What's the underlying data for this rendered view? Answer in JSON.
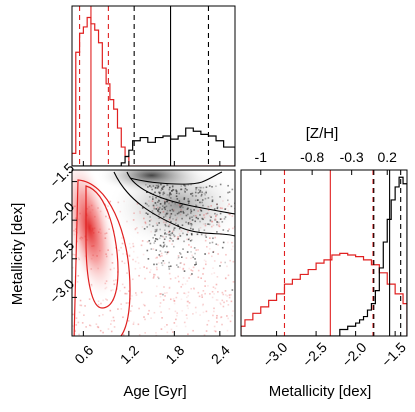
{
  "chart_data": [
    {
      "id": "age_hist",
      "type": "histogram",
      "xlim": [
        0.45,
        2.6
      ],
      "series": [
        {
          "color": "#e02020",
          "bins_x": [
            0.45,
            0.5,
            0.55,
            0.6,
            0.65,
            0.7,
            0.75,
            0.8,
            0.85,
            0.9,
            0.95,
            1.0,
            1.05,
            1.1,
            1.15,
            1.2,
            2.6
          ],
          "values": [
            0.08,
            0.72,
            0.84,
            0.88,
            0.94,
            0.9,
            0.86,
            0.78,
            0.62,
            0.52,
            0.42,
            0.36,
            0.24,
            0.12,
            0.06,
            0.0
          ],
          "lines": [
            {
              "x": 0.55,
              "style": "dashed"
            },
            {
              "x": 0.7,
              "style": "solid"
            },
            {
              "x": 0.93,
              "style": "dashed"
            }
          ]
        },
        {
          "color": "#000000",
          "bins_x": [
            0.45,
            1.1,
            1.15,
            1.2,
            1.25,
            1.35,
            1.45,
            1.55,
            1.65,
            1.75,
            1.85,
            1.95,
            2.05,
            2.15,
            2.25,
            2.35,
            2.45,
            2.6
          ],
          "values": [
            0.0,
            0.02,
            0.06,
            0.1,
            0.16,
            0.18,
            0.15,
            0.18,
            0.19,
            0.17,
            0.19,
            0.24,
            0.22,
            0.2,
            0.19,
            0.16,
            0.12
          ],
          "lines": [
            {
              "x": 1.27,
              "style": "dashed"
            },
            {
              "x": 1.75,
              "style": "solid"
            },
            {
              "x": 2.25,
              "style": "dashed"
            }
          ]
        }
      ]
    },
    {
      "id": "age_metallicity_2d",
      "type": "scatter-density",
      "xlabel": "Age [Gyr]",
      "ylabel": "Metallicity [dex]",
      "xlim": [
        0.45,
        2.6
      ],
      "ylim": [
        -3.5,
        -1.35
      ],
      "xticks": [
        0.6,
        1.2,
        1.8,
        2.4
      ],
      "xtick_labels": [
        "0.6",
        "1.2",
        "1.8",
        "2.4"
      ],
      "yticks": [
        -1.5,
        -2.0,
        -2.5,
        -3.0
      ],
      "ytick_labels": [
        "−1.5",
        "−2.0",
        "−2.5",
        "−3.0"
      ],
      "populations": [
        {
          "color": "#e02020",
          "center_x": 0.68,
          "center_y": -2.1
        },
        {
          "color": "#000000",
          "center_x": 1.5,
          "center_y": -1.42
        }
      ]
    },
    {
      "id": "metallicity_hist",
      "type": "histogram",
      "xlabel": "Metallicity [dex]",
      "top_axis_label": "[Z/H]",
      "top_ticks": [
        {
          "x": -3.2,
          "label": "-1"
        },
        {
          "x": -2.55,
          "label": "-0.8"
        },
        {
          "x": -2.05,
          "label": "-0.3"
        },
        {
          "x": -1.6,
          "label": "0.2"
        }
      ],
      "xlim": [
        -3.45,
        -1.35
      ],
      "xticks": [
        -3.0,
        -2.5,
        -2.0,
        -1.5
      ],
      "xtick_labels": [
        "−3.0",
        "−2.5",
        "−2.0",
        "−1.5"
      ],
      "series": [
        {
          "color": "#e02020",
          "bins_x": [
            -3.45,
            -3.4,
            -3.3,
            -3.2,
            -3.1,
            -3.0,
            -2.9,
            -2.8,
            -2.7,
            -2.6,
            -2.5,
            -2.4,
            -2.3,
            -2.2,
            -2.1,
            -2.0,
            -1.9,
            -1.8,
            -1.7,
            -1.6,
            -1.5,
            -1.4,
            -1.35
          ],
          "values": [
            0.06,
            0.1,
            0.14,
            0.18,
            0.22,
            0.26,
            0.32,
            0.35,
            0.38,
            0.41,
            0.45,
            0.47,
            0.5,
            0.51,
            0.5,
            0.49,
            0.47,
            0.44,
            0.39,
            0.32,
            0.26,
            0.2
          ],
          "lines": [
            {
              "x": -2.9,
              "style": "dashed"
            },
            {
              "x": -2.32,
              "style": "solid"
            },
            {
              "x": -1.78,
              "style": "dashed"
            }
          ]
        },
        {
          "color": "#000000",
          "bins_x": [
            -3.45,
            -2.2,
            -2.1,
            -2.0,
            -1.95,
            -1.9,
            -1.85,
            -1.8,
            -1.75,
            -1.7,
            -1.65,
            -1.6,
            -1.55,
            -1.5,
            -1.45,
            -1.4,
            -1.35
          ],
          "values": [
            0.0,
            0.04,
            0.06,
            0.08,
            0.1,
            0.12,
            0.16,
            0.2,
            0.28,
            0.42,
            0.58,
            0.72,
            0.84,
            0.92,
            0.98,
            0.94
          ],
          "lines": [
            {
              "x": -1.77,
              "style": "dashed"
            },
            {
              "x": -1.57,
              "style": "solid"
            },
            {
              "x": -1.43,
              "style": "dashed"
            }
          ]
        }
      ]
    }
  ],
  "colors": {
    "primary": "#e02020",
    "secondary": "#000000"
  }
}
